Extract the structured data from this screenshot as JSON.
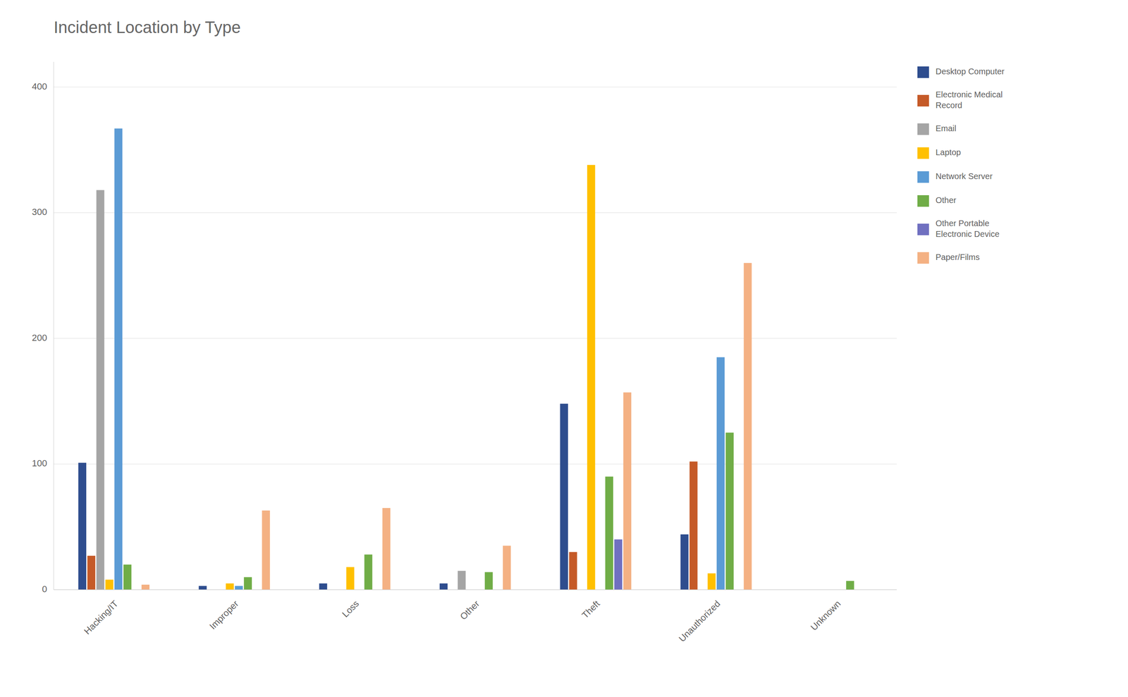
{
  "chart_data": {
    "type": "bar",
    "title": "Incident Location by Type",
    "categories": [
      "Hacking/IT",
      "Improper",
      "Loss",
      "Other",
      "Theft",
      "Unauthorized",
      "Unknown"
    ],
    "series": [
      {
        "name": "Desktop Computer",
        "color": "#2e4d8e",
        "values": [
          101,
          3,
          5,
          5,
          148,
          44,
          0
        ]
      },
      {
        "name": "Electronic Medical Record",
        "color": "#c55a28",
        "values": [
          27,
          0,
          0,
          0,
          30,
          102,
          0
        ]
      },
      {
        "name": "Email",
        "color": "#a5a5a5",
        "values": [
          318,
          0,
          0,
          15,
          0,
          0,
          0
        ]
      },
      {
        "name": "Laptop",
        "color": "#ffc000",
        "values": [
          8,
          5,
          18,
          0,
          338,
          13,
          0
        ]
      },
      {
        "name": "Network Server",
        "color": "#5b9bd5",
        "values": [
          367,
          3,
          0,
          0,
          0,
          185,
          0
        ]
      },
      {
        "name": "Other",
        "color": "#70ad47",
        "values": [
          20,
          10,
          28,
          14,
          90,
          125,
          7
        ]
      },
      {
        "name": "Other Portable Electronic Device",
        "color": "#7070c0",
        "values": [
          0,
          0,
          0,
          0,
          40,
          0,
          0
        ]
      },
      {
        "name": "Paper/Films",
        "color": "#f4b183",
        "values": [
          4,
          63,
          65,
          35,
          157,
          260,
          0
        ]
      }
    ],
    "ylim": [
      0,
      420
    ],
    "yticks": [
      0,
      100,
      200,
      300,
      400
    ],
    "grid": true,
    "legend": "right"
  }
}
